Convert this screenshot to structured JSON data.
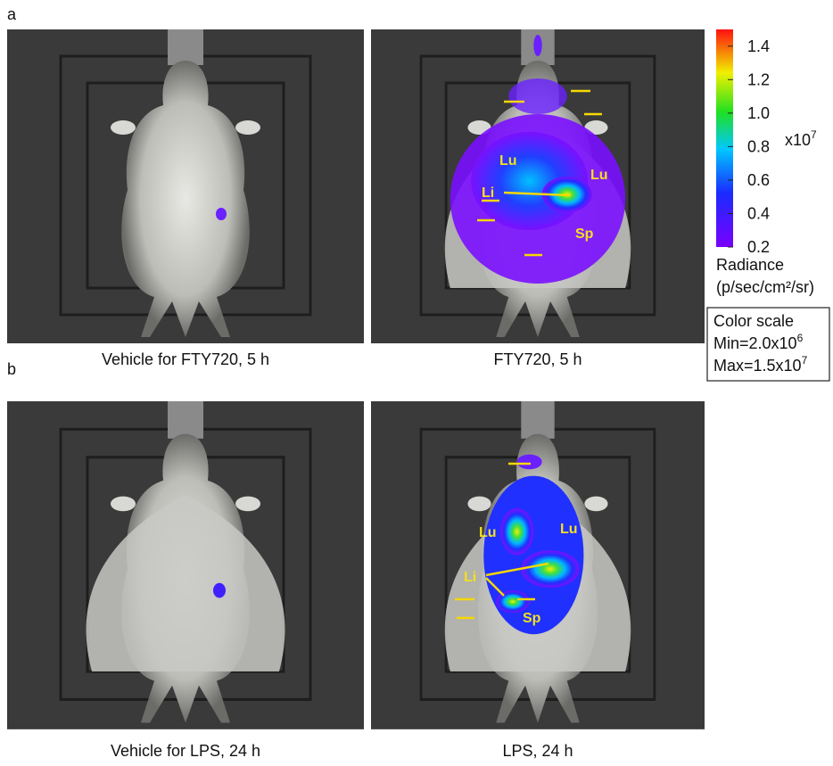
{
  "panels": [
    {
      "label": "a",
      "images": [
        {
          "caption": "Vehicle for FTY720, 5 h"
        },
        {
          "caption": "FTY720, 5 h",
          "organs": [
            "Lu",
            "Lu",
            "Li",
            "Sp"
          ]
        }
      ]
    },
    {
      "label": "b",
      "images": [
        {
          "caption": "Vehicle for LPS, 24 h"
        },
        {
          "caption": "LPS, 24 h",
          "organs": [
            "Lu",
            "Lu",
            "Li",
            "Sp"
          ]
        }
      ]
    }
  ],
  "colorbar": {
    "ylim": [
      0.2,
      1.5
    ],
    "yticks": [
      0.2,
      0.4,
      0.6,
      0.8,
      {
        "value": 1,
        "label": "1.0"
      },
      1.2,
      1.4
    ],
    "multiplier": {
      "base": "x10",
      "exponent": "7"
    },
    "quantity": "Radiance",
    "unit": "(p/sec/cm²/sr)"
  },
  "color_scale": {
    "title": "Color scale",
    "min": {
      "text": "Min=2.0x10",
      "exponent": "6"
    },
    "max": {
      "text": "Max=1.5x10",
      "exponent": "7"
    }
  }
}
